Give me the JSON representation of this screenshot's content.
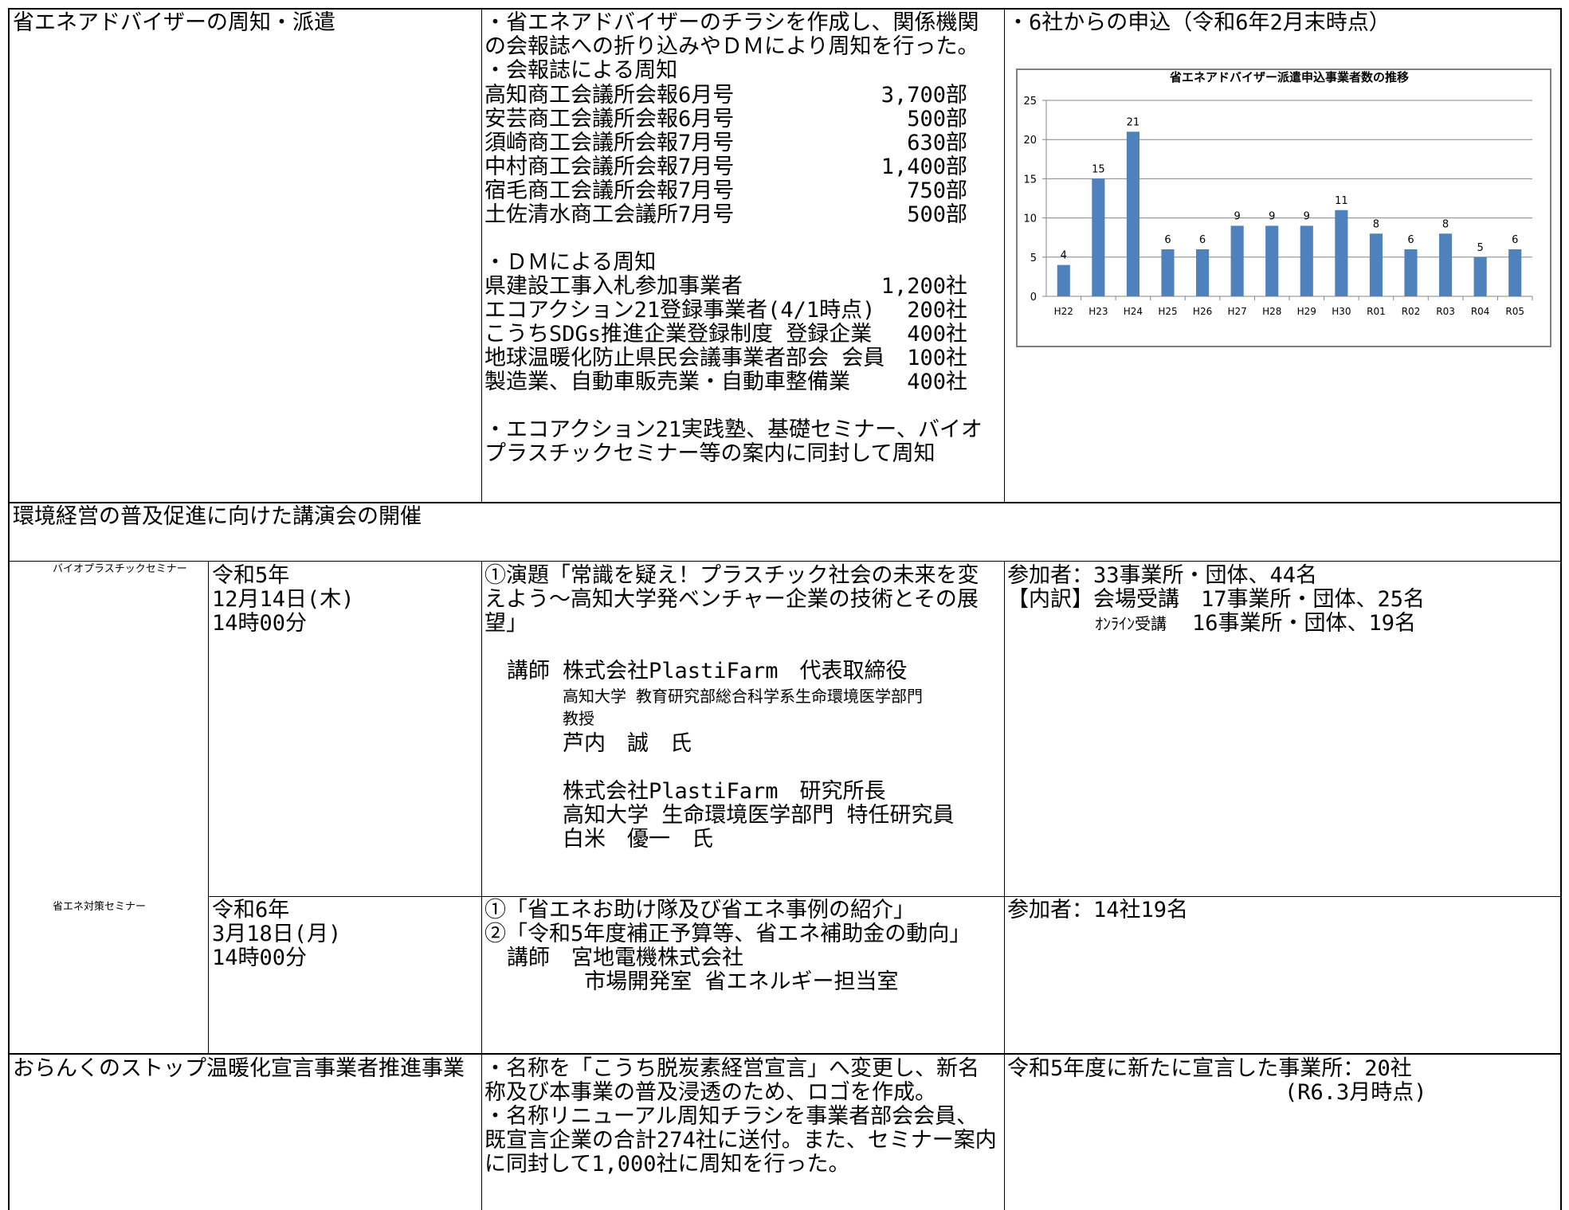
{
  "section1": {
    "title": "省エネアドバイザーの周知・派遣",
    "intro": "・省エネアドバイザーのチラシを作成し、関係機関\nの会報誌への折り込みやＤＭにより周知を行った。",
    "bulletin_heading": "・会報誌による周知",
    "bulletins": [
      {
        "name": "高知商工会議所会報6月号",
        "amount": "3,700部"
      },
      {
        "name": "安芸商工会議所会報6月号",
        "amount": "500部"
      },
      {
        "name": "須崎商工会議所会報7月号",
        "amount": "630部"
      },
      {
        "name": "中村商工会議所会報7月号",
        "amount": "1,400部"
      },
      {
        "name": "宿毛商工会議所会報7月号",
        "amount": "750部"
      },
      {
        "name": "土佐清水商工会議所7月号",
        "amount": "500部"
      }
    ],
    "dm_heading": "・ＤＭによる周知",
    "dm_targets": [
      {
        "name": "県建設工事入札参加事業者",
        "amount": "1,200社"
      },
      {
        "name": "エコアクション21登録事業者(4/1時点)",
        "amount": "200社"
      },
      {
        "name": "こうちSDGs推進企業登録制度 登録企業",
        "amount": "400社"
      },
      {
        "name": "地球温暖化防止県民会議事業者部会 会員",
        "amount": "100社"
      },
      {
        "name": "製造業、自動車販売業・自動車整備業",
        "amount": "400社"
      }
    ],
    "seminar_note": "・エコアクション21実践塾、基礎セミナー、バイオ\nプラスチックセミナー等の案内に同封して周知",
    "result": "・6社からの申込（令和6年2月末時点）"
  },
  "chart_data": {
    "type": "bar",
    "title": "省エネアドバイザー派遣申込事業者数の推移",
    "categories": [
      "H22",
      "H23",
      "H24",
      "H25",
      "H26",
      "H27",
      "H28",
      "H29",
      "H30",
      "R01",
      "R02",
      "R03",
      "R04",
      "R05"
    ],
    "values": [
      4,
      15,
      21,
      6,
      6,
      9,
      9,
      9,
      11,
      8,
      6,
      8,
      5,
      6
    ],
    "ylim": [
      0,
      25
    ],
    "yticks": [
      0,
      5,
      10,
      15,
      20,
      25
    ],
    "grid": true,
    "data_labels": true,
    "bar_color": "#4f81bd"
  },
  "section2": {
    "title": "環境経営の普及促進に向けた講演会の開催",
    "seminars": [
      {
        "name": "バイオプラスチックセミナー",
        "date": "令和5年\n12月14日(木)\n14時00分",
        "content": "①演題「常識を疑え！プラスチック社会の未来を変\nえよう～高知大学発ベンチャー企業の技術とその展\n望」",
        "lecturer_label": "講師",
        "lecturer1_title": "株式会社PlastiFarm　代表取締役",
        "lecturer1_affil": "高知大学 教育研究部総合科学系生命環境医学部門\n教授",
        "lecturer1_name": "芦内　誠　氏",
        "lecturer2_title": "株式会社PlastiFarm　研究所長",
        "lecturer2_affil": "高知大学 生命環境医学部門 特任研究員",
        "lecturer2_name": "白米　優一　氏",
        "result": "参加者：33事業所・団体、44名\n【内訳】会場受講　17事業所・団体、25名",
        "result_online_label": "ｵﾝﾗｲﾝ受講",
        "result_online": "16事業所・団体、19名"
      },
      {
        "name": "省エネ対策セミナー",
        "date": "令和6年\n3月18日(月)\n14時00分",
        "content": "①「省エネお助け隊及び省エネ事例の紹介」\n②「令和5年度補正予算等、省エネ補助金の動向」",
        "lecturer": "講師　宮地電機株式会社\n　　　 市場開発室 省エネルギー担当室",
        "result": "参加者：14社19名"
      }
    ]
  },
  "section3": {
    "title": "おらんくのストップ温暖化宣言事業者推進事業",
    "content": "・名称を「こうち脱炭素経営宣言」へ変更し、新名\n称及び本事業の普及浸透のため、ロゴを作成。\n・名称リニューアル周知チラシを事業者部会会員、\n既宣言企業の合計274社に送付。また、セミナー案内\nに同封して1,000社に周知を行った。",
    "result": "令和5年度に新たに宣言した事業所：20社",
    "result_note": "(R6.3月時点)"
  }
}
